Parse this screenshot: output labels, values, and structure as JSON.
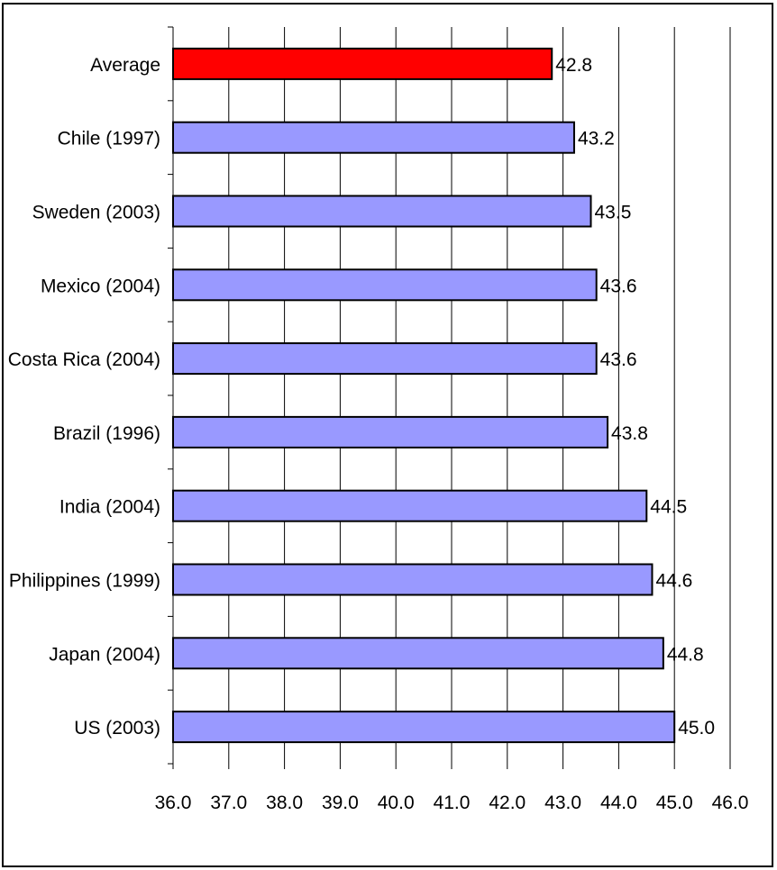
{
  "chart_data": {
    "type": "bar",
    "orientation": "horizontal",
    "categories": [
      "Average",
      "Chile (1997)",
      "Sweden (2003)",
      "Mexico (2004)",
      "Costa Rica (2004)",
      "Brazil (1996)",
      "India (2004)",
      "Philippines (1999)",
      "Japan (2004)",
      "US (2003)"
    ],
    "values": [
      42.8,
      43.2,
      43.5,
      43.6,
      43.6,
      43.8,
      44.5,
      44.6,
      44.8,
      45.0
    ],
    "value_labels": [
      "42.8",
      "43.2",
      "43.5",
      "43.6",
      "43.6",
      "43.8",
      "44.5",
      "44.6",
      "44.8",
      "45.0"
    ],
    "xlim": [
      36.0,
      46.0
    ],
    "x_ticks": [
      "36.0",
      "37.0",
      "38.0",
      "39.0",
      "40.0",
      "41.0",
      "42.0",
      "43.0",
      "44.0",
      "45.0",
      "46.0"
    ],
    "title": "",
    "xlabel": "",
    "ylabel": "",
    "grid": "vertical",
    "legend": "none",
    "colors": {
      "highlight": "#ff0000",
      "bar": "#9999ff",
      "outline": "#000000",
      "grid": "#000000"
    }
  }
}
